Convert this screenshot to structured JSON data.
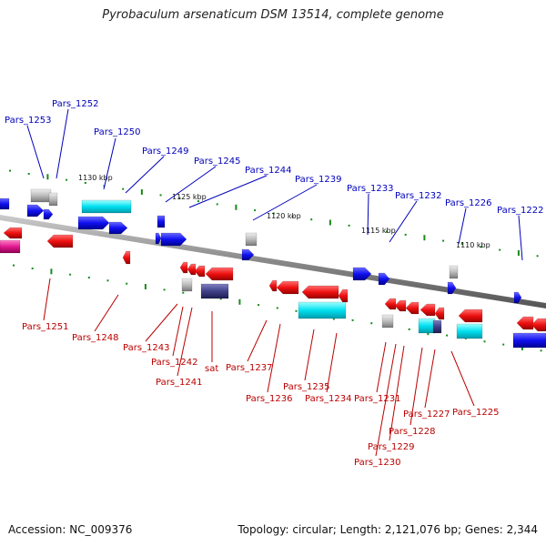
{
  "title": "Pyrobaculum arsenaticum DSM 13514, complete genome",
  "footer": {
    "accession": "Accession: NC_009376",
    "summary": "Topology: circular; Length: 2,121,076 bp; Genes: 2,344"
  },
  "colors": {
    "forward_gene": "#0000ee",
    "reverse_gene": "#ee0000",
    "rna_cyan": "#00d8e8",
    "pseudo_grey": "#aaaaaa",
    "dark_purple": "#404080",
    "magenta": "#e01890",
    "tick": "#1a8a1a",
    "backbone": "#888888"
  },
  "kbp_marks": [
    "1130 kbp",
    "1125 kbp",
    "1120 kbp",
    "1115 kbp",
    "1110 kbp"
  ],
  "top_labels": [
    "Pars_1253",
    "Pars_1252",
    "Pars_1250",
    "Pars_1249",
    "Pars_1245",
    "Pars_1244",
    "Pars_1239",
    "Pars_1233",
    "Pars_1232",
    "Pars_1226",
    "Pars_1222"
  ],
  "bottom_labels": [
    "Pars_1251",
    "Pars_1248",
    "Pars_1243",
    "Pars_1242",
    "Pars_1241",
    "sat",
    "Pars_1237",
    "Pars_1236",
    "Pars_1235",
    "Pars_1234",
    "Pars_1231",
    "Pars_1230",
    "Pars_1229",
    "Pars_1228",
    "Pars_1227",
    "Pars_1225"
  ]
}
